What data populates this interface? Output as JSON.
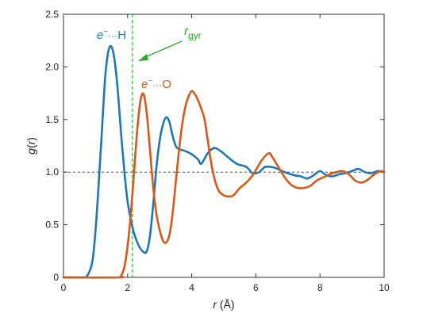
{
  "chart_data": {
    "type": "line",
    "xlabel_italic": "r",
    "xlabel_unit": " (Å)",
    "ylabel_italic": "g",
    "ylabel_paren_open": "(",
    "ylabel_arg": "r",
    "ylabel_paren_close": ")",
    "xlim": [
      0,
      10
    ],
    "ylim": [
      0,
      2.5
    ],
    "xticks": [
      0,
      2,
      4,
      6,
      8,
      10
    ],
    "xtick_labels": [
      "0",
      "2",
      "4",
      "6",
      "8",
      "10"
    ],
    "yticks": [
      0,
      0.5,
      1.0,
      1.5,
      2.0,
      2.5
    ],
    "ytick_labels": [
      "0",
      "0.5",
      "1.0",
      "1.5",
      "2.0",
      "2.5"
    ],
    "reference_line": {
      "y": 1.0,
      "style": "dashed",
      "color": "#333333"
    },
    "marker_line": {
      "x": 2.15,
      "style": "dashed",
      "color": "#2ecc40"
    },
    "annotations": {
      "eh_label": {
        "e": "e",
        "sup": "−",
        "dots": "···",
        "atom": "H"
      },
      "eo_label": {
        "e": "e",
        "sup": "−",
        "dots": "···",
        "atom": "O"
      },
      "rgyr_label": {
        "r": "r",
        "sub": "gyr"
      }
    },
    "series": [
      {
        "key": "eH",
        "color": "#1f77b4",
        "points": [
          [
            0.0,
            0.0
          ],
          [
            0.6,
            0.0
          ],
          [
            0.75,
            0.02
          ],
          [
            0.9,
            0.15
          ],
          [
            1.0,
            0.45
          ],
          [
            1.1,
            0.9
          ],
          [
            1.2,
            1.4
          ],
          [
            1.3,
            1.9
          ],
          [
            1.4,
            2.15
          ],
          [
            1.5,
            2.19
          ],
          [
            1.6,
            2.05
          ],
          [
            1.7,
            1.75
          ],
          [
            1.8,
            1.35
          ],
          [
            1.9,
            1.0
          ],
          [
            2.0,
            0.72
          ],
          [
            2.1,
            0.55
          ],
          [
            2.2,
            0.42
          ],
          [
            2.35,
            0.3
          ],
          [
            2.5,
            0.24
          ],
          [
            2.6,
            0.25
          ],
          [
            2.7,
            0.4
          ],
          [
            2.8,
            0.7
          ],
          [
            2.9,
            1.05
          ],
          [
            3.0,
            1.3
          ],
          [
            3.1,
            1.45
          ],
          [
            3.2,
            1.52
          ],
          [
            3.3,
            1.48
          ],
          [
            3.4,
            1.35
          ],
          [
            3.5,
            1.25
          ],
          [
            3.6,
            1.22
          ],
          [
            3.8,
            1.2
          ],
          [
            4.0,
            1.17
          ],
          [
            4.2,
            1.12
          ],
          [
            4.3,
            1.08
          ],
          [
            4.5,
            1.18
          ],
          [
            4.7,
            1.23
          ],
          [
            4.9,
            1.2
          ],
          [
            5.1,
            1.15
          ],
          [
            5.4,
            1.08
          ],
          [
            5.7,
            1.05
          ],
          [
            5.9,
            0.99
          ],
          [
            6.1,
            1.0
          ],
          [
            6.3,
            1.05
          ],
          [
            6.6,
            1.04
          ],
          [
            6.9,
            1.0
          ],
          [
            7.2,
            0.97
          ],
          [
            7.4,
            0.96
          ],
          [
            7.6,
            0.94
          ],
          [
            7.8,
            0.97
          ],
          [
            8.0,
            1.01
          ],
          [
            8.2,
            0.97
          ],
          [
            8.4,
            0.96
          ],
          [
            8.6,
            0.98
          ],
          [
            8.8,
            0.99
          ],
          [
            9.0,
            1.01
          ],
          [
            9.2,
            1.03
          ],
          [
            9.4,
            1.0
          ],
          [
            9.6,
            0.99
          ],
          [
            9.8,
            1.01
          ],
          [
            10.0,
            1.0
          ]
        ]
      },
      {
        "key": "eO",
        "color": "#d45a1c",
        "points": [
          [
            0.0,
            0.0
          ],
          [
            1.7,
            0.0
          ],
          [
            1.8,
            0.02
          ],
          [
            1.9,
            0.1
          ],
          [
            2.0,
            0.3
          ],
          [
            2.1,
            0.6
          ],
          [
            2.2,
            1.0
          ],
          [
            2.3,
            1.4
          ],
          [
            2.4,
            1.68
          ],
          [
            2.5,
            1.74
          ],
          [
            2.6,
            1.55
          ],
          [
            2.7,
            1.2
          ],
          [
            2.8,
            0.85
          ],
          [
            2.9,
            0.6
          ],
          [
            3.0,
            0.45
          ],
          [
            3.1,
            0.35
          ],
          [
            3.2,
            0.33
          ],
          [
            3.3,
            0.4
          ],
          [
            3.4,
            0.6
          ],
          [
            3.5,
            0.9
          ],
          [
            3.6,
            1.2
          ],
          [
            3.7,
            1.45
          ],
          [
            3.8,
            1.62
          ],
          [
            3.9,
            1.72
          ],
          [
            4.0,
            1.77
          ],
          [
            4.1,
            1.74
          ],
          [
            4.2,
            1.68
          ],
          [
            4.3,
            1.6
          ],
          [
            4.4,
            1.5
          ],
          [
            4.5,
            1.3
          ],
          [
            4.6,
            1.1
          ],
          [
            4.7,
            0.95
          ],
          [
            4.8,
            0.85
          ],
          [
            4.9,
            0.8
          ],
          [
            5.1,
            0.77
          ],
          [
            5.3,
            0.78
          ],
          [
            5.5,
            0.85
          ],
          [
            5.7,
            0.9
          ],
          [
            5.9,
            0.97
          ],
          [
            6.0,
            1.02
          ],
          [
            6.2,
            1.12
          ],
          [
            6.4,
            1.18
          ],
          [
            6.5,
            1.15
          ],
          [
            6.7,
            1.05
          ],
          [
            6.9,
            0.95
          ],
          [
            7.1,
            0.88
          ],
          [
            7.3,
            0.85
          ],
          [
            7.5,
            0.85
          ],
          [
            7.7,
            0.87
          ],
          [
            7.9,
            0.92
          ],
          [
            8.1,
            0.95
          ],
          [
            8.3,
            0.98
          ],
          [
            8.5,
            1.0
          ],
          [
            8.7,
            1.01
          ],
          [
            8.9,
            0.98
          ],
          [
            9.1,
            0.92
          ],
          [
            9.3,
            0.9
          ],
          [
            9.5,
            0.93
          ],
          [
            9.7,
            0.98
          ],
          [
            9.9,
            1.01
          ],
          [
            10.0,
            1.0
          ]
        ]
      }
    ]
  }
}
